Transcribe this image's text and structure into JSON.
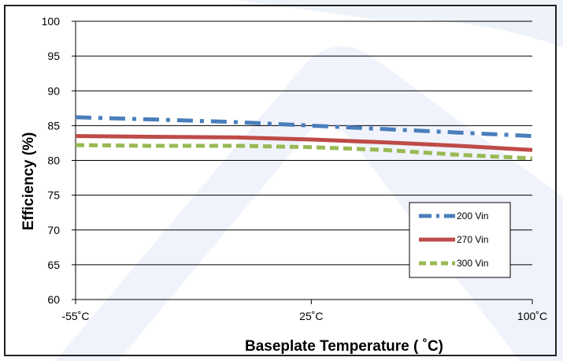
{
  "chart_data": {
    "type": "line",
    "title": "",
    "xlabel": "Baseplate Temperature ( ˚C)",
    "ylabel": "Efficiency (%)",
    "x_ticks": [
      "-55˚C",
      "25˚C",
      "100˚C"
    ],
    "x_tick_values": [
      -55,
      25,
      100
    ],
    "xlim": [
      -55,
      100
    ],
    "ylim": [
      60,
      100
    ],
    "y_ticks": [
      60,
      65,
      70,
      75,
      80,
      85,
      90,
      95,
      100
    ],
    "grid": "horizontal",
    "legend_position": "bottom-right",
    "series": [
      {
        "name": "200 Vin",
        "color": "#4A7EBB",
        "style": "dash-dot",
        "x": [
          -55,
          -30,
          0,
          25,
          50,
          75,
          100
        ],
        "y": [
          86.2,
          85.9,
          85.5,
          85.0,
          84.5,
          84.0,
          83.5
        ]
      },
      {
        "name": "270 Vin",
        "color": "#BE4B48",
        "style": "solid",
        "x": [
          -55,
          -30,
          0,
          25,
          50,
          75,
          100
        ],
        "y": [
          83.5,
          83.4,
          83.3,
          83.0,
          82.6,
          82.1,
          81.5
        ]
      },
      {
        "name": "300 Vin",
        "color": "#98B954",
        "style": "dashed",
        "x": [
          -55,
          -30,
          0,
          25,
          50,
          75,
          100
        ],
        "y": [
          82.2,
          82.1,
          82.1,
          81.9,
          81.5,
          80.8,
          80.3
        ]
      }
    ]
  }
}
